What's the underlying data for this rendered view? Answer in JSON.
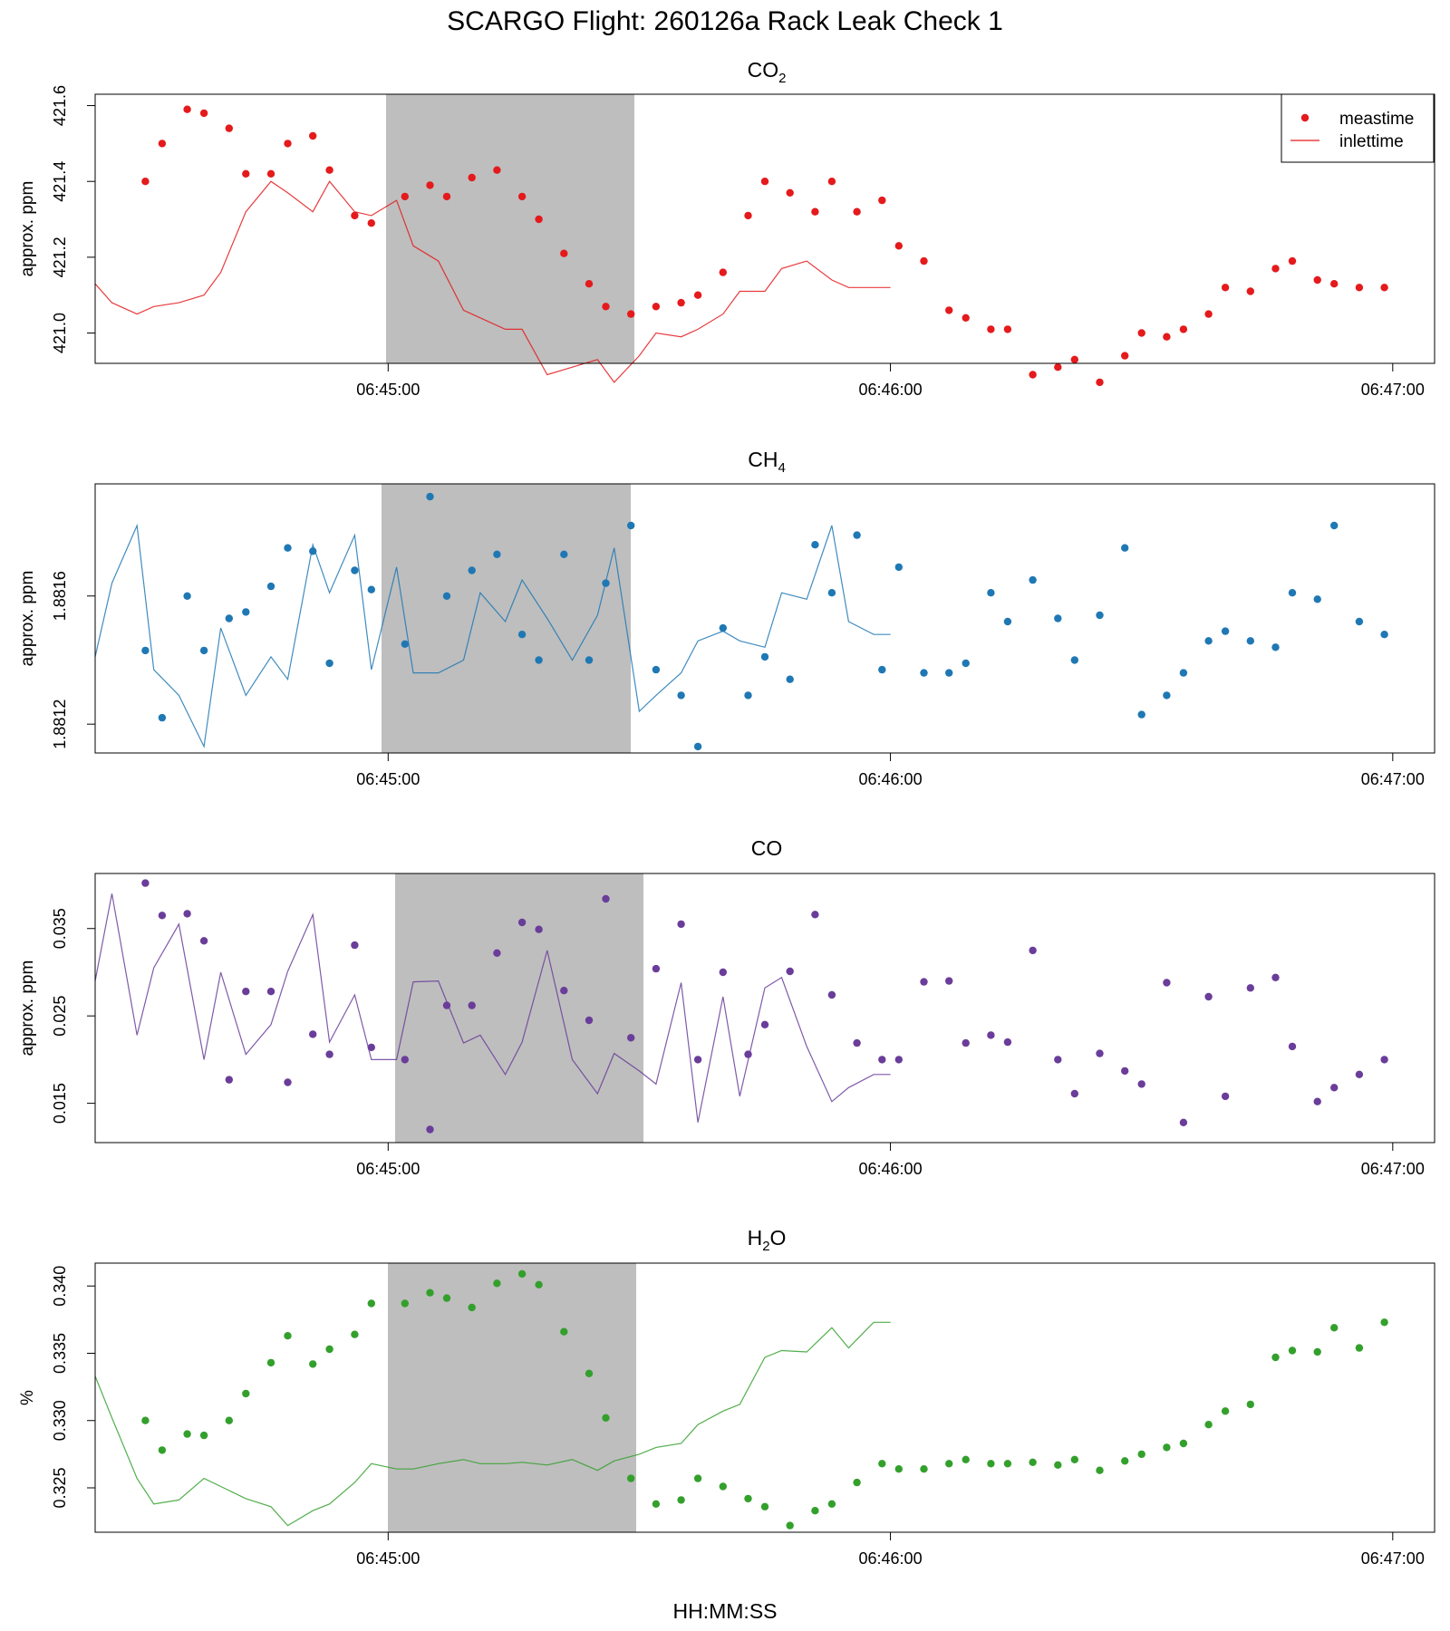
{
  "title": "SCARGO Flight: 260126a  Rack Leak Check 1",
  "xlabel": "HH:MM:SS",
  "legend": {
    "entries": [
      "meastime",
      "inlettime"
    ],
    "placement": "top-right"
  },
  "chart_data": [
    {
      "type": "scatter",
      "title": "CO",
      "title_sub": "2",
      "ylabel": "approx. ppm",
      "color": "#e41a1c",
      "xlim": [
        "06:44:25",
        "06:47:05"
      ],
      "ylim": [
        420.92,
        421.63
      ],
      "y_ticks": [
        "421.0",
        "421.2",
        "421.4",
        "421.6"
      ],
      "x_ticks": [
        "06:45:00",
        "06:46:00",
        "06:47:00"
      ],
      "shade": [
        "06:45:00",
        "06:45:30"
      ],
      "series": [
        {
          "name": "meastime",
          "x": [
            "06:44:31",
            "06:44:33",
            "06:44:36",
            "06:44:38",
            "06:44:41",
            "06:44:43",
            "06:44:46",
            "06:44:48",
            "06:44:51",
            "06:44:53",
            "06:44:56",
            "06:44:58",
            "06:45:02",
            "06:45:05",
            "06:45:07",
            "06:45:10",
            "06:45:13",
            "06:45:16",
            "06:45:18",
            "06:45:21",
            "06:45:24",
            "06:45:26",
            "06:45:29",
            "06:45:32",
            "06:45:35",
            "06:45:37",
            "06:45:40",
            "06:45:43",
            "06:45:45",
            "06:45:48",
            "06:45:51",
            "06:45:53",
            "06:45:56",
            "06:45:59",
            "06:46:01",
            "06:46:04",
            "06:46:07",
            "06:46:09",
            "06:46:12",
            "06:46:14",
            "06:46:17",
            "06:46:20",
            "06:46:22",
            "06:46:25",
            "06:46:28",
            "06:46:30",
            "06:46:33",
            "06:46:35",
            "06:46:38",
            "06:46:40",
            "06:46:43",
            "06:46:46",
            "06:46:48",
            "06:46:51",
            "06:46:53",
            "06:46:56",
            "06:46:59"
          ],
          "y": [
            421.4,
            421.5,
            421.59,
            421.58,
            421.54,
            421.42,
            421.42,
            421.5,
            421.52,
            421.43,
            421.31,
            421.29,
            421.36,
            421.39,
            421.36,
            421.41,
            421.43,
            421.36,
            421.3,
            421.21,
            421.13,
            421.07,
            421.05,
            421.07,
            421.08,
            421.1,
            421.16,
            421.31,
            421.4,
            421.37,
            421.32,
            421.4,
            421.32,
            421.35,
            421.23,
            421.19,
            421.06,
            421.04,
            421.01,
            421.01,
            420.89,
            420.91,
            420.93,
            420.87,
            420.94,
            421.0,
            420.99,
            421.01,
            421.05,
            421.12,
            421.11,
            421.17,
            421.19,
            421.14,
            421.13,
            421.12,
            421.12
          ]
        },
        {
          "name": "inlettime",
          "x": [
            "06:44:25",
            "06:44:27",
            "06:44:30",
            "06:44:32",
            "06:44:35",
            "06:44:38",
            "06:44:40",
            "06:44:43",
            "06:44:46",
            "06:44:48",
            "06:44:51",
            "06:44:53",
            "06:44:56",
            "06:44:58",
            "06:45:01",
            "06:45:03",
            "06:45:06",
            "06:45:09",
            "06:45:11",
            "06:45:14",
            "06:45:16",
            "06:45:19",
            "06:45:22",
            "06:45:25",
            "06:45:27",
            "06:45:30",
            "06:45:32",
            "06:45:35",
            "06:45:37",
            "06:45:40",
            "06:45:42",
            "06:45:45",
            "06:45:47",
            "06:45:50",
            "06:45:53",
            "06:45:55",
            "06:45:58",
            "06:46:00"
          ],
          "y": [
            421.13,
            421.08,
            421.05,
            421.07,
            421.08,
            421.1,
            421.16,
            421.32,
            421.4,
            421.37,
            421.32,
            421.4,
            421.32,
            421.31,
            421.35,
            421.23,
            421.19,
            421.06,
            421.04,
            421.01,
            421.01,
            420.89,
            420.91,
            420.93,
            420.87,
            420.94,
            421.0,
            420.99,
            421.01,
            421.05,
            421.11,
            421.11,
            421.17,
            421.19,
            421.14,
            421.12,
            421.12,
            421.12
          ]
        }
      ]
    },
    {
      "type": "scatter",
      "title": "CH",
      "title_sub": "4",
      "ylabel": "approx. ppm",
      "color": "#1f78b4",
      "xlim": [
        "06:44:25",
        "06:47:05"
      ],
      "ylim": [
        1.88111,
        1.88195
      ],
      "y_ticks": [
        "1.8812",
        "1.8816"
      ],
      "x_ticks": [
        "06:45:00",
        "06:46:00",
        "06:47:00"
      ],
      "shade": [
        "06:45:00",
        "06:45:30"
      ],
      "series": [
        {
          "name": "meastime",
          "x": [
            "06:44:31",
            "06:44:33",
            "06:44:36",
            "06:44:38",
            "06:44:41",
            "06:44:43",
            "06:44:46",
            "06:44:48",
            "06:44:51",
            "06:44:53",
            "06:44:56",
            "06:44:58",
            "06:45:02",
            "06:45:05",
            "06:45:07",
            "06:45:10",
            "06:45:13",
            "06:45:16",
            "06:45:18",
            "06:45:21",
            "06:45:24",
            "06:45:26",
            "06:45:29",
            "06:45:32",
            "06:45:35",
            "06:45:37",
            "06:45:40",
            "06:45:43",
            "06:45:45",
            "06:45:48",
            "06:45:51",
            "06:45:53",
            "06:45:56",
            "06:45:59",
            "06:46:01",
            "06:46:04",
            "06:46:07",
            "06:46:09",
            "06:46:12",
            "06:46:14",
            "06:46:17",
            "06:46:20",
            "06:46:22",
            "06:46:25",
            "06:46:28",
            "06:46:30",
            "06:46:33",
            "06:46:35",
            "06:46:38",
            "06:46:40",
            "06:46:43",
            "06:46:46",
            "06:46:48",
            "06:46:51",
            "06:46:53",
            "06:46:56",
            "06:46:59"
          ],
          "y": [
            1.88143,
            1.88122,
            1.8816,
            1.88143,
            1.88153,
            1.88155,
            1.88163,
            1.88175,
            1.88174,
            1.88139,
            1.88168,
            1.88162,
            1.88145,
            1.88191,
            1.8816,
            1.88168,
            1.88173,
            1.88148,
            1.8814,
            1.88173,
            1.8814,
            1.88164,
            1.88182,
            1.88137,
            1.88129,
            1.88113,
            1.8815,
            1.88129,
            1.88141,
            1.88134,
            1.88176,
            1.88161,
            1.88179,
            1.88137,
            1.88169,
            1.88136,
            1.88136,
            1.88139,
            1.88161,
            1.88152,
            1.88165,
            1.88153,
            1.8814,
            1.88154,
            1.88175,
            1.88123,
            1.88129,
            1.88136,
            1.88146,
            1.88149,
            1.88146,
            1.88144,
            1.88161,
            1.88159,
            1.88182,
            1.88152,
            1.88148
          ]
        },
        {
          "name": "inlettime",
          "x": [
            "06:44:25",
            "06:44:27",
            "06:44:30",
            "06:44:32",
            "06:44:35",
            "06:44:38",
            "06:44:40",
            "06:44:43",
            "06:44:46",
            "06:44:48",
            "06:44:51",
            "06:44:53",
            "06:44:56",
            "06:44:58",
            "06:45:01",
            "06:45:03",
            "06:45:06",
            "06:45:09",
            "06:45:11",
            "06:45:14",
            "06:45:16",
            "06:45:19",
            "06:45:22",
            "06:45:25",
            "06:45:27",
            "06:45:30",
            "06:45:32",
            "06:45:35",
            "06:45:37",
            "06:45:40",
            "06:45:42",
            "06:45:45",
            "06:45:47",
            "06:45:50",
            "06:45:53",
            "06:45:55",
            "06:45:58",
            "06:46:00"
          ],
          "y": [
            1.88141,
            1.88164,
            1.88182,
            1.88137,
            1.88129,
            1.88113,
            1.8815,
            1.88129,
            1.88141,
            1.88134,
            1.88176,
            1.88161,
            1.88179,
            1.88137,
            1.88169,
            1.88136,
            1.88136,
            1.8814,
            1.88161,
            1.88152,
            1.88165,
            1.88153,
            1.8814,
            1.88154,
            1.88175,
            1.88124,
            1.88129,
            1.88136,
            1.88146,
            1.88149,
            1.88146,
            1.88144,
            1.88161,
            1.88159,
            1.88182,
            1.88152,
            1.88148,
            1.88148
          ]
        }
      ]
    },
    {
      "type": "scatter",
      "title": "CO",
      "title_sub": "",
      "ylabel": "approx. ppm",
      "color": "#6a3d9a",
      "xlim": [
        "06:44:25",
        "06:47:05"
      ],
      "ylim": [
        0.0105,
        0.0413
      ],
      "y_ticks": [
        "0.015",
        "0.025",
        "0.035"
      ],
      "x_ticks": [
        "06:45:00",
        "06:46:00",
        "06:47:00"
      ],
      "shade": [
        "06:45:00",
        "06:45:30"
      ],
      "series": [
        {
          "name": "meastime",
          "x": [
            "06:44:31",
            "06:44:33",
            "06:44:36",
            "06:44:38",
            "06:44:41",
            "06:44:43",
            "06:44:46",
            "06:44:48",
            "06:44:51",
            "06:44:53",
            "06:44:56",
            "06:44:58",
            "06:45:02",
            "06:45:05",
            "06:45:07",
            "06:45:10",
            "06:45:13",
            "06:45:16",
            "06:45:18",
            "06:45:21",
            "06:45:24",
            "06:45:26",
            "06:45:29",
            "06:45:32",
            "06:45:35",
            "06:45:37",
            "06:45:40",
            "06:45:43",
            "06:45:45",
            "06:45:48",
            "06:45:51",
            "06:45:53",
            "06:45:56",
            "06:45:59",
            "06:46:01",
            "06:46:04",
            "06:46:07",
            "06:46:09",
            "06:46:12",
            "06:46:14",
            "06:46:17",
            "06:46:20",
            "06:46:22",
            "06:46:25",
            "06:46:28",
            "06:46:30",
            "06:46:33",
            "06:46:35",
            "06:46:38",
            "06:46:40",
            "06:46:43",
            "06:46:46",
            "06:46:48",
            "06:46:51",
            "06:46:53",
            "06:46:56",
            "06:46:59"
          ],
          "y": [
            0.0402,
            0.0365,
            0.0367,
            0.0336,
            0.0177,
            0.0278,
            0.0278,
            0.0174,
            0.0229,
            0.0206,
            0.0331,
            0.0214,
            0.02,
            0.012,
            0.0262,
            0.0262,
            0.0322,
            0.0357,
            0.0349,
            0.0279,
            0.0245,
            0.0384,
            0.0225,
            0.0304,
            0.0355,
            0.02,
            0.03,
            0.0206,
            0.024,
            0.0301,
            0.0366,
            0.0274,
            0.0219,
            0.02,
            0.02,
            0.0289,
            0.029,
            0.0219,
            0.0228,
            0.022,
            0.0325,
            0.02,
            0.0161,
            0.0207,
            0.0187,
            0.0172,
            0.0288,
            0.0128,
            0.0272,
            0.0158,
            0.0282,
            0.0294,
            0.0215,
            0.0152,
            0.0168,
            0.0183,
            0.02
          ]
        },
        {
          "name": "inlettime",
          "x": [
            "06:44:25",
            "06:44:27",
            "06:44:30",
            "06:44:32",
            "06:44:35",
            "06:44:38",
            "06:44:40",
            "06:44:43",
            "06:44:46",
            "06:44:48",
            "06:44:51",
            "06:44:53",
            "06:44:56",
            "06:44:58",
            "06:45:01",
            "06:45:03",
            "06:45:06",
            "06:45:09",
            "06:45:11",
            "06:45:14",
            "06:45:16",
            "06:45:19",
            "06:45:22",
            "06:45:25",
            "06:45:27",
            "06:45:30",
            "06:45:32",
            "06:45:35",
            "06:45:37",
            "06:45:40",
            "06:45:42",
            "06:45:45",
            "06:45:47",
            "06:45:50",
            "06:45:53",
            "06:45:55",
            "06:45:58",
            "06:46:00"
          ],
          "y": [
            0.029,
            0.039,
            0.0228,
            0.0305,
            0.0355,
            0.02,
            0.03,
            0.0206,
            0.024,
            0.0301,
            0.0366,
            0.022,
            0.0274,
            0.02,
            0.02,
            0.0289,
            0.029,
            0.0219,
            0.0228,
            0.0183,
            0.022,
            0.0325,
            0.02,
            0.0161,
            0.0207,
            0.0187,
            0.0172,
            0.0288,
            0.0128,
            0.0272,
            0.0158,
            0.0282,
            0.0294,
            0.0215,
            0.0152,
            0.0168,
            0.0183,
            0.0183
          ]
        }
      ]
    },
    {
      "type": "scatter",
      "title": "H",
      "title_sub": "2",
      "title_suffix": "O",
      "ylabel": "%",
      "color": "#33a02c",
      "xlim": [
        "06:44:25",
        "06:47:05"
      ],
      "ylim": [
        0.3217,
        0.3417
      ],
      "y_ticks": [
        "0.325",
        "0.330",
        "0.335",
        "0.340"
      ],
      "x_ticks": [
        "06:45:00",
        "06:46:00",
        "06:47:00"
      ],
      "shade": [
        "06:45:00",
        "06:45:30"
      ],
      "series": [
        {
          "name": "meastime",
          "x": [
            "06:44:31",
            "06:44:33",
            "06:44:36",
            "06:44:38",
            "06:44:41",
            "06:44:43",
            "06:44:46",
            "06:44:48",
            "06:44:51",
            "06:44:53",
            "06:44:56",
            "06:44:58",
            "06:45:02",
            "06:45:05",
            "06:45:07",
            "06:45:10",
            "06:45:13",
            "06:45:16",
            "06:45:18",
            "06:45:21",
            "06:45:24",
            "06:45:26",
            "06:45:29",
            "06:45:32",
            "06:45:35",
            "06:45:37",
            "06:45:40",
            "06:45:43",
            "06:45:45",
            "06:45:48",
            "06:45:51",
            "06:45:53",
            "06:45:56",
            "06:45:59",
            "06:46:01",
            "06:46:04",
            "06:46:07",
            "06:46:09",
            "06:46:12",
            "06:46:14",
            "06:46:17",
            "06:46:20",
            "06:46:22",
            "06:46:25",
            "06:46:28",
            "06:46:30",
            "06:46:33",
            "06:46:35",
            "06:46:38",
            "06:46:40",
            "06:46:43",
            "06:46:46",
            "06:46:48",
            "06:46:51",
            "06:46:53",
            "06:46:56",
            "06:46:59"
          ],
          "y": [
            0.33,
            0.3278,
            0.329,
            0.3289,
            0.33,
            0.332,
            0.3343,
            0.3363,
            0.3342,
            0.3353,
            0.3364,
            0.3387,
            0.3387,
            0.3395,
            0.3391,
            0.3384,
            0.3402,
            0.3409,
            0.3401,
            0.3366,
            0.3335,
            0.3302,
            0.3257,
            0.3238,
            0.3241,
            0.3257,
            0.3251,
            0.3242,
            0.3236,
            0.3222,
            0.3233,
            0.3238,
            0.3254,
            0.3268,
            0.3264,
            0.3264,
            0.3268,
            0.3271,
            0.3268,
            0.3268,
            0.3269,
            0.3267,
            0.3271,
            0.3263,
            0.327,
            0.3275,
            0.328,
            0.3283,
            0.3297,
            0.3307,
            0.3312,
            0.3347,
            0.3352,
            0.3351,
            0.3369,
            0.3354,
            0.3373
          ]
        },
        {
          "name": "inlettime",
          "x": [
            "06:44:25",
            "06:44:27",
            "06:44:30",
            "06:44:32",
            "06:44:35",
            "06:44:38",
            "06:44:40",
            "06:44:43",
            "06:44:46",
            "06:44:48",
            "06:44:51",
            "06:44:53",
            "06:44:56",
            "06:44:58",
            "06:45:01",
            "06:45:03",
            "06:45:06",
            "06:45:09",
            "06:45:11",
            "06:45:14",
            "06:45:16",
            "06:45:19",
            "06:45:22",
            "06:45:25",
            "06:45:27",
            "06:45:30",
            "06:45:32",
            "06:45:35",
            "06:45:37",
            "06:45:40",
            "06:45:42",
            "06:45:45",
            "06:45:47",
            "06:45:50",
            "06:45:53",
            "06:45:55",
            "06:45:58",
            "06:46:00"
          ],
          "y": [
            0.3333,
            0.3302,
            0.3257,
            0.3238,
            0.3241,
            0.3257,
            0.3251,
            0.3242,
            0.3236,
            0.3222,
            0.3233,
            0.3238,
            0.3254,
            0.3268,
            0.3264,
            0.3264,
            0.3268,
            0.3271,
            0.3268,
            0.3268,
            0.3269,
            0.3267,
            0.3271,
            0.3263,
            0.327,
            0.3275,
            0.328,
            0.3283,
            0.3297,
            0.3307,
            0.3312,
            0.3347,
            0.3352,
            0.3351,
            0.3369,
            0.3354,
            0.3373,
            0.3373
          ]
        }
      ]
    }
  ]
}
